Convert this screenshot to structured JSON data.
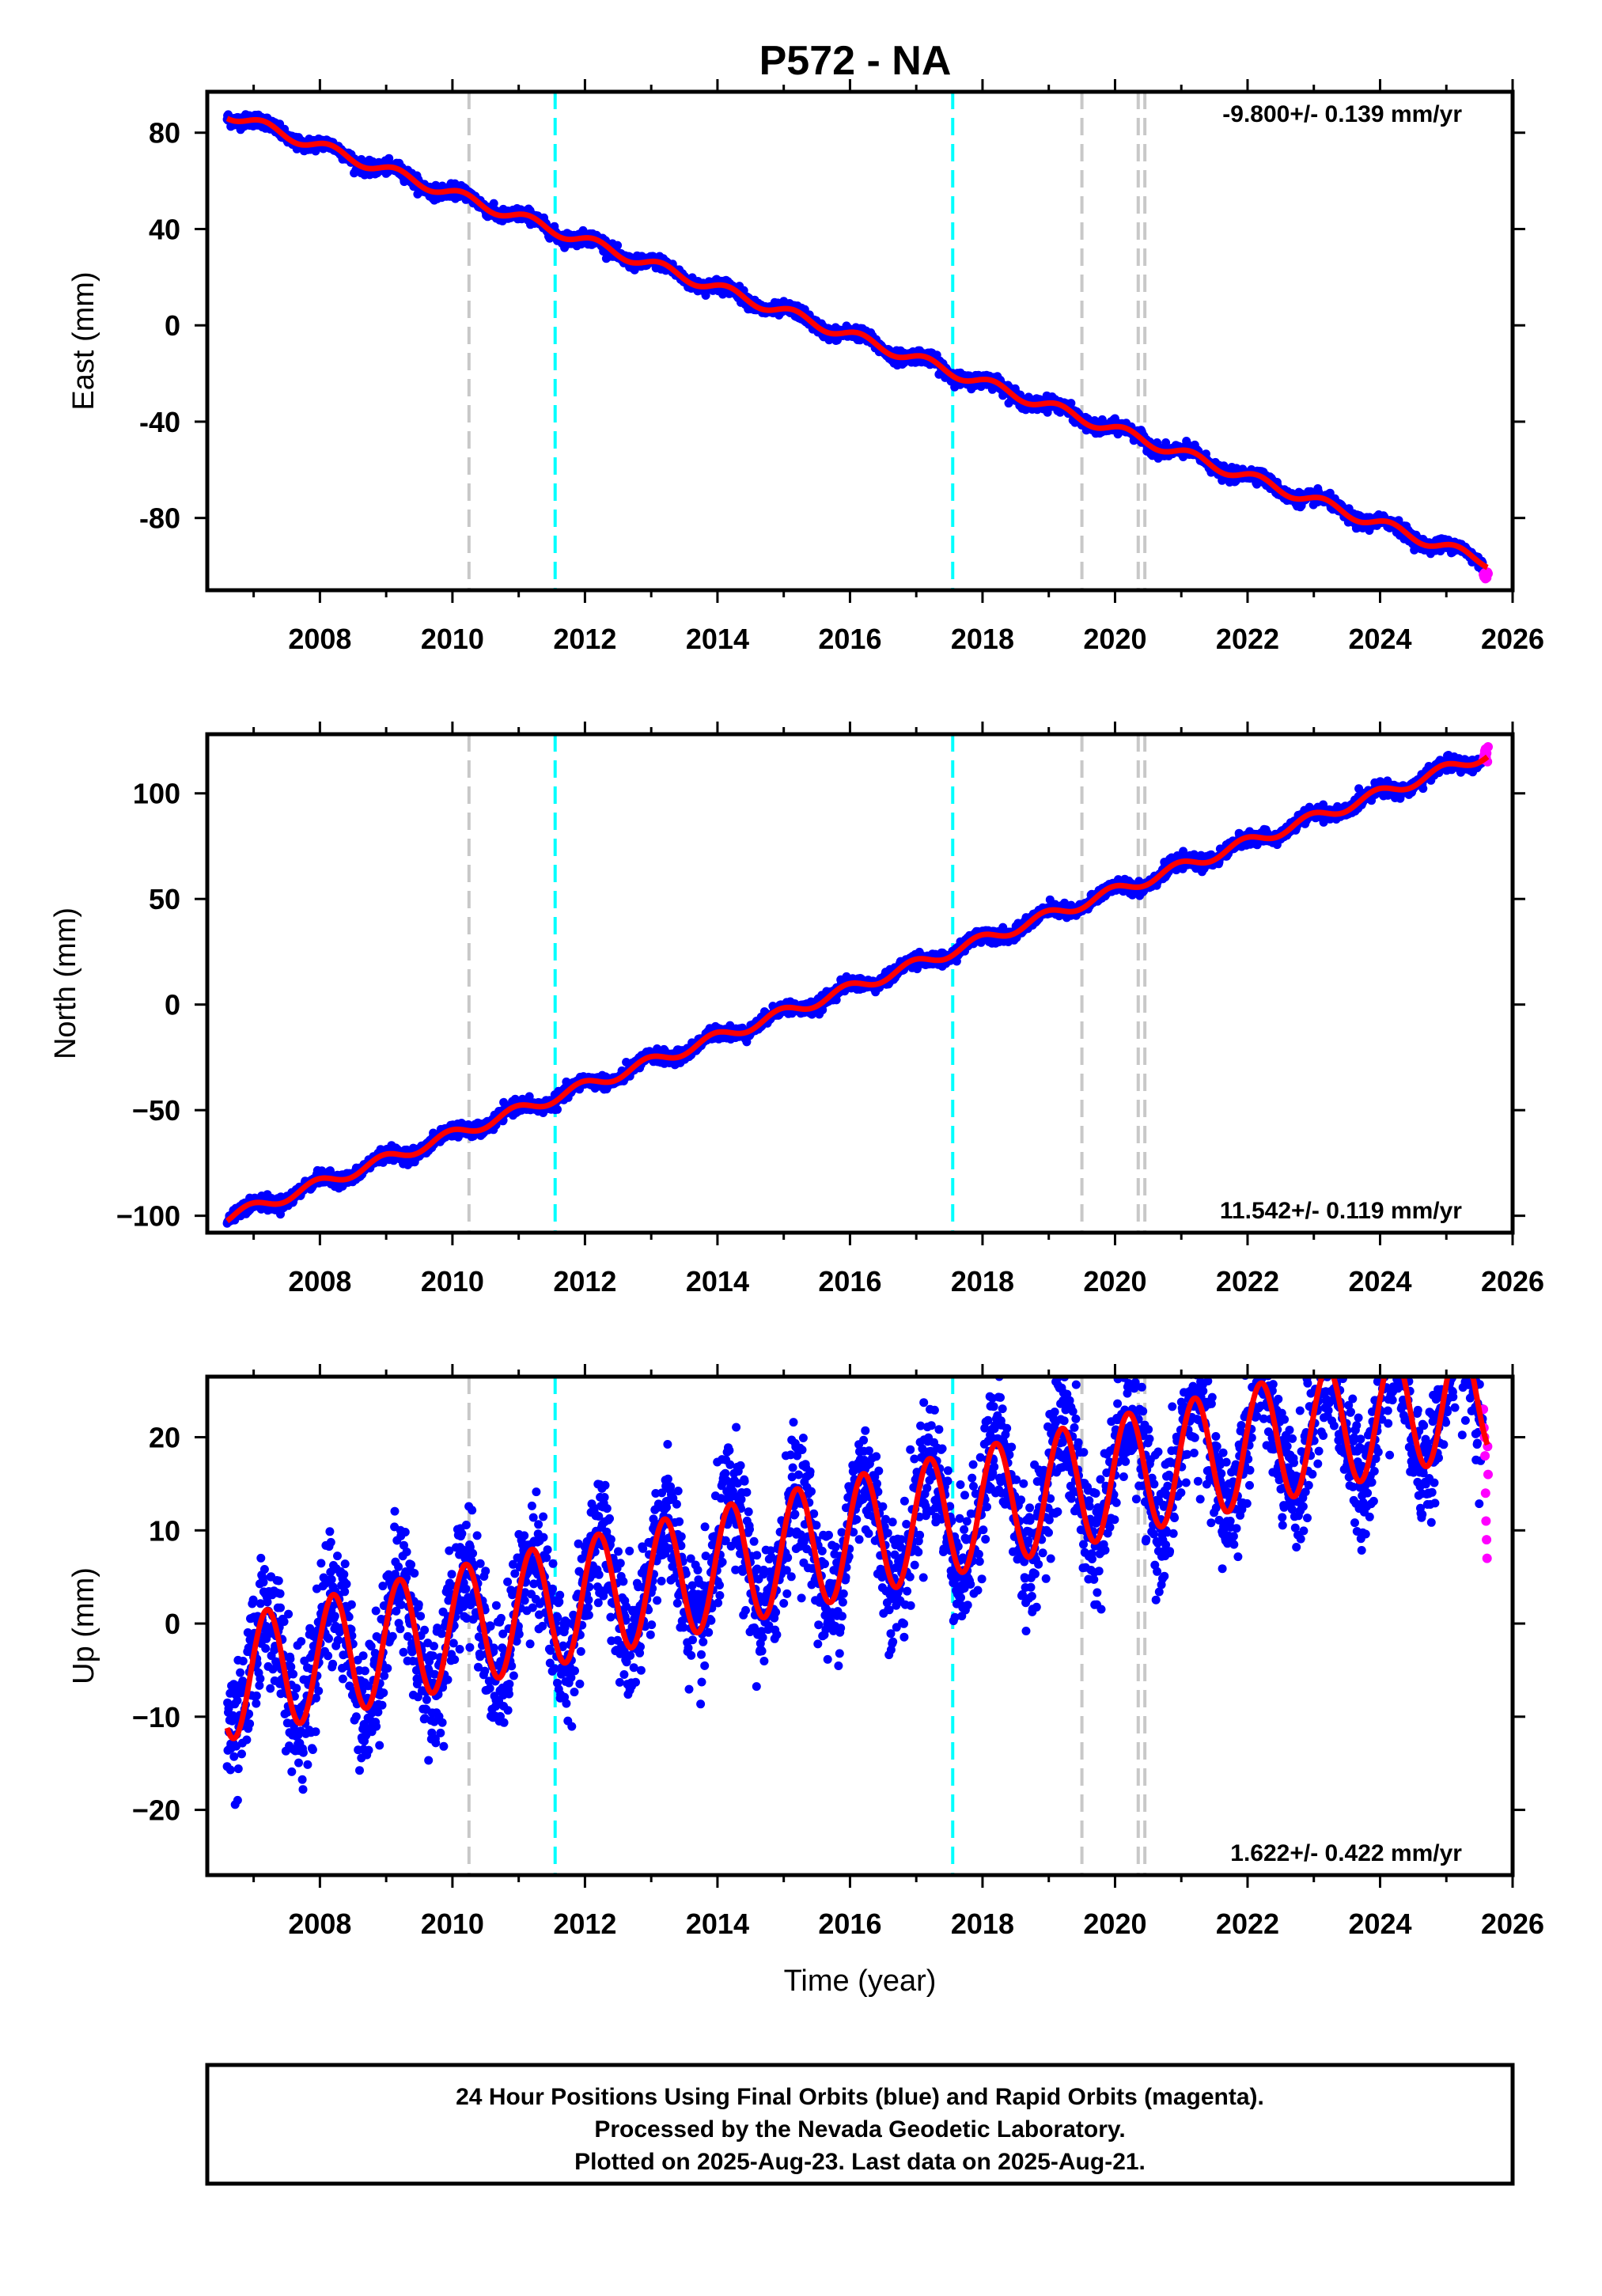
{
  "page_title": "P572 - NA",
  "footer": {
    "lines": [
      "24 Hour Positions Using Final Orbits (blue) and Rapid Orbits (magenta).",
      "Processed by the Nevada Geodetic Laboratory.",
      "Plotted on 2025-Aug-23. Last data on 2025-Aug-21."
    ]
  },
  "colors": {
    "final_orbits": "#0000ff",
    "rapid_orbits": "#ff00ff",
    "model_fit": "#ff0000",
    "event_gray": "#c8c8c8",
    "event_cyan": "#00ffff",
    "frame": "#000000"
  },
  "chart_data": [
    {
      "type": "scatter",
      "name": "east",
      "ylabel": "East (mm)",
      "xlabel": "",
      "xlim": [
        2006.3,
        2026.0
      ],
      "ylim": [
        -110,
        97
      ],
      "xticks": [
        2008,
        2010,
        2012,
        2014,
        2016,
        2018,
        2020,
        2022,
        2024,
        2026
      ],
      "yticks": [
        -80,
        -40,
        0,
        40,
        80
      ],
      "tick_labels": [
        "-80",
        "-40",
        "0",
        "40",
        "80"
      ],
      "rate_label": "-9.800+/- 0.139 mm/yr",
      "rate_position": "top-right",
      "model": {
        "start_year": 2006.6,
        "end_year": 2025.62,
        "start_value": 88,
        "rate": -9.8,
        "annual_amplitude": 2.2,
        "annual_phase": 0.6
      },
      "points_start": 2006.6,
      "points_end": 2025.55,
      "scatter_sd": 1.3,
      "rapid_points": {
        "start": 2025.56,
        "end": 2025.63,
        "values": [
          -103.5,
          -104.5,
          -102.8,
          -105.2,
          -103.9,
          -104.8,
          -102.5,
          -103.1
        ]
      },
      "vlines": {
        "gray": [
          2010.25,
          2019.5,
          2020.35,
          2020.45
        ],
        "cyan": [
          2011.55,
          2017.55
        ]
      }
    },
    {
      "type": "scatter",
      "name": "north",
      "ylabel": "North (mm)",
      "xlabel": "",
      "xlim": [
        2006.3,
        2026.0
      ],
      "ylim": [
        -108,
        128
      ],
      "xticks": [
        2008,
        2010,
        2012,
        2014,
        2016,
        2018,
        2020,
        2022,
        2024,
        2026
      ],
      "yticks": [
        -100,
        -50,
        0,
        50,
        100
      ],
      "tick_labels": [
        "−100",
        "−50",
        "0",
        "50",
        "100"
      ],
      "rate_label": "11.542+/- 0.119 mm/yr",
      "rate_position": "bottom-right",
      "model": {
        "start_year": 2006.6,
        "end_year": 2025.62,
        "start_value": -101,
        "rate": 11.542,
        "annual_amplitude": 2.6,
        "annual_phase": 1.9
      },
      "points_start": 2006.6,
      "points_end": 2025.55,
      "scatter_sd": 1.5,
      "rapid_points": {
        "start": 2025.56,
        "end": 2025.63,
        "values": [
          116,
          118,
          120,
          121,
          117,
          119,
          115,
          122
        ]
      },
      "vlines": {
        "gray": [
          2010.25,
          2019.5,
          2020.35,
          2020.45
        ],
        "cyan": [
          2011.55,
          2017.55
        ]
      }
    },
    {
      "type": "scatter",
      "name": "up",
      "ylabel": "Up (mm)",
      "xlabel": "Time (year)",
      "xlim": [
        2006.3,
        2026.0
      ],
      "ylim": [
        -27,
        26.5
      ],
      "xticks": [
        2008,
        2010,
        2012,
        2014,
        2016,
        2018,
        2020,
        2022,
        2024,
        2026
      ],
      "yticks": [
        -20,
        -10,
        0,
        10,
        20
      ],
      "tick_labels": [
        "−20",
        "−10",
        "0",
        "10",
        "20"
      ],
      "rate_label": "1.622+/- 0.422 mm/yr",
      "rate_position": "bottom-right",
      "model": {
        "start_year": 2006.6,
        "end_year": 2025.62,
        "start_value": -6,
        "rate": 1.622,
        "annual_amplitude": 6.5,
        "annual_phase": 0.3
      },
      "points_start": 2006.6,
      "points_end": 2025.55,
      "scatter_sd": 3.4,
      "rapid_points": {
        "start": 2025.56,
        "end": 2025.63,
        "values": [
          23,
          21,
          20,
          18,
          14,
          11,
          9,
          7,
          19,
          16
        ]
      },
      "vlines": {
        "gray": [
          2010.25,
          2019.5,
          2020.35,
          2020.45
        ],
        "cyan": [
          2011.55,
          2017.55
        ]
      }
    }
  ]
}
